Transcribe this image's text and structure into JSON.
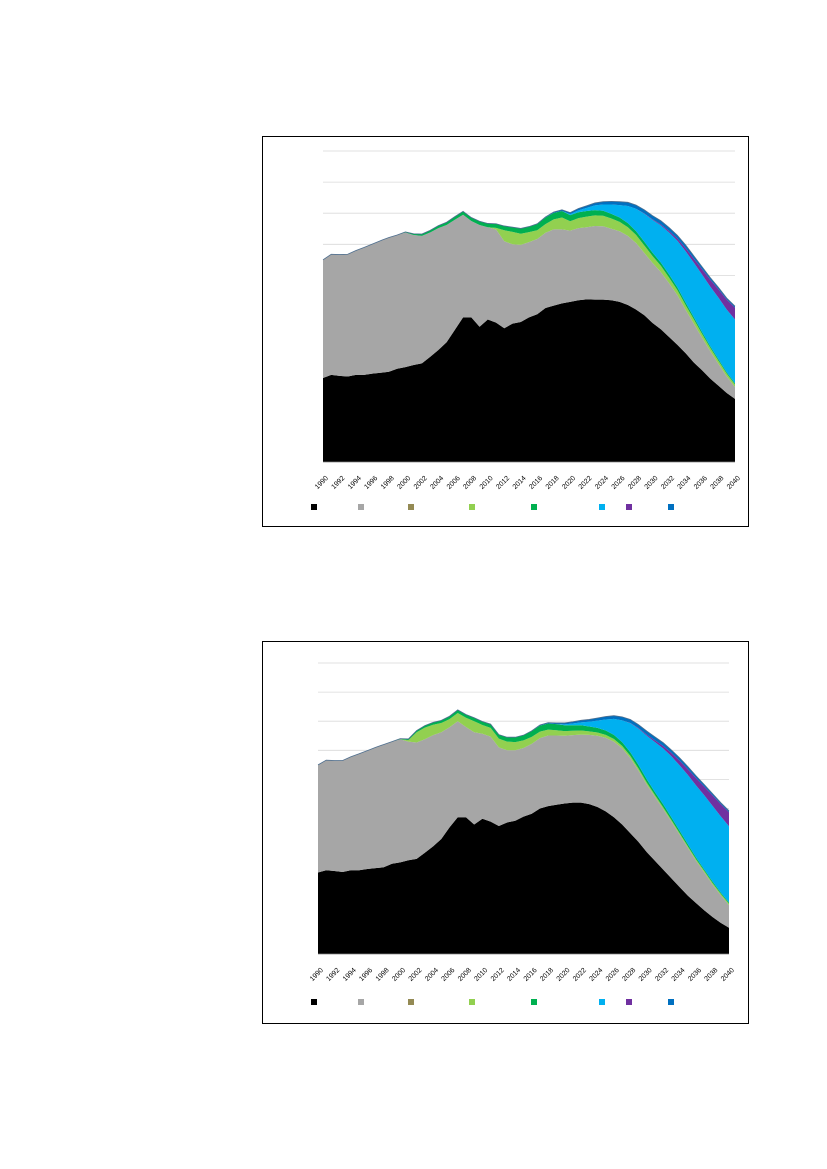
{
  "charts": [
    {
      "id": "top",
      "chart_data": {
        "type": "area",
        "title": "",
        "xlabel": "",
        "ylabel": "",
        "x_tick_labels": [
          "1990",
          "1992",
          "1994",
          "1996",
          "1998",
          "2000",
          "2002",
          "2004",
          "2006",
          "2008",
          "2010",
          "2012",
          "2014",
          "2016",
          "2018",
          "2020",
          "2022",
          "2024",
          "2026",
          "2028",
          "2030",
          "2032",
          "2034",
          "2036",
          "2038",
          "2040"
        ],
        "ylim": [
          0,
          10
        ],
        "grid": true,
        "legend_position": "bottom",
        "x": [
          1990,
          1991,
          1992,
          1993,
          1994,
          1995,
          1996,
          1997,
          1998,
          1999,
          2000,
          2001,
          2002,
          2003,
          2004,
          2005,
          2006,
          2007,
          2008,
          2009,
          2010,
          2011,
          2012,
          2013,
          2014,
          2015,
          2016,
          2017,
          2018,
          2019,
          2020,
          2021,
          2022,
          2023,
          2024,
          2025,
          2026,
          2027,
          2028,
          2029,
          2030,
          2031,
          2032,
          2033,
          2034,
          2035,
          2036,
          2037,
          2038,
          2039,
          2040
        ],
        "series": [
          {
            "color": "#000000",
            "values": [
              2.7,
              2.8,
              2.77,
              2.75,
              2.8,
              2.8,
              2.84,
              2.87,
              2.9,
              3.0,
              3.05,
              3.12,
              3.17,
              3.38,
              3.6,
              3.85,
              4.25,
              4.65,
              4.65,
              4.35,
              4.58,
              4.48,
              4.3,
              4.45,
              4.5,
              4.65,
              4.75,
              4.95,
              5.03,
              5.1,
              5.15,
              5.2,
              5.23,
              5.22,
              5.22,
              5.2,
              5.15,
              5.05,
              4.9,
              4.72,
              4.47,
              4.27,
              4.02,
              3.77,
              3.5,
              3.2,
              2.95,
              2.68,
              2.45,
              2.22,
              2.03
            ]
          },
          {
            "color": "#a6a6a6",
            "values": [
              3.8,
              3.88,
              3.9,
              3.93,
              4.0,
              4.1,
              4.17,
              4.25,
              4.32,
              4.3,
              4.33,
              4.18,
              4.1,
              4.0,
              3.92,
              3.77,
              3.54,
              3.3,
              3.1,
              3.27,
              2.97,
              3.0,
              2.8,
              2.55,
              2.48,
              2.42,
              2.42,
              2.42,
              2.45,
              2.38,
              2.29,
              2.32,
              2.32,
              2.37,
              2.36,
              2.3,
              2.27,
              2.22,
              2.14,
              2.0,
              1.93,
              1.84,
              1.73,
              1.6,
              1.4,
              1.25,
              1.05,
              0.88,
              0.7,
              0.53,
              0.38
            ]
          },
          {
            "color": "#948a54",
            "values": [
              0,
              0,
              0,
              0,
              0,
              0,
              0,
              0,
              0,
              0,
              0,
              0,
              0,
              0,
              0,
              0,
              0,
              0,
              0,
              0,
              0,
              0,
              0,
              0,
              0,
              0,
              0,
              0,
              0,
              0,
              0,
              0,
              0,
              0,
              0,
              0,
              0,
              0,
              0,
              0,
              0,
              0,
              0,
              0,
              0,
              0,
              0,
              0,
              0,
              0,
              0
            ]
          },
          {
            "color": "#92d050",
            "values": [
              0,
              0,
              0,
              0,
              0,
              0,
              0,
              0,
              0,
              0,
              0,
              0,
              0,
              0,
              0,
              0,
              0,
              0,
              0,
              0,
              0.0,
              0.05,
              0.35,
              0.4,
              0.36,
              0.32,
              0.28,
              0.28,
              0.32,
              0.38,
              0.3,
              0.32,
              0.34,
              0.34,
              0.34,
              0.33,
              0.3,
              0.28,
              0.26,
              0.24,
              0.22,
              0.2,
              0.18,
              0.16,
              0.15,
              0.14,
              0.12,
              0.11,
              0.1,
              0.09,
              0.08
            ]
          },
          {
            "color": "#00b050",
            "values": [
              0,
              0,
              0,
              0,
              0,
              0,
              0,
              0,
              0,
              0,
              0.02,
              0.04,
              0.06,
              0.07,
              0.08,
              0.09,
              0.1,
              0.11,
              0.11,
              0.12,
              0.12,
              0.13,
              0.14,
              0.15,
              0.17,
              0.18,
              0.2,
              0.21,
              0.21,
              0.21,
              0.2,
              0.19,
              0.18,
              0.17,
              0.16,
              0.15,
              0.14,
              0.13,
              0.12,
              0.12,
              0.11,
              0.1,
              0.1,
              0.09,
              0.08,
              0.07,
              0.06,
              0.05,
              0.05,
              0.04,
              0.04
            ]
          },
          {
            "color": "#00b0f0",
            "values": [
              0,
              0,
              0,
              0,
              0,
              0,
              0,
              0,
              0,
              0,
              0,
              0,
              0,
              0,
              0,
              0,
              0,
              0,
              0,
              0,
              0,
              0,
              0,
              0,
              0,
              0,
              0,
              0,
              0,
              0,
              0.03,
              0.06,
              0.1,
              0.15,
              0.2,
              0.3,
              0.4,
              0.55,
              0.72,
              0.9,
              1.05,
              1.2,
              1.35,
              1.5,
              1.65,
              1.75,
              1.85,
              1.92,
              1.98,
              2.02,
              2.05
            ]
          },
          {
            "color": "#7030a0",
            "values": [
              0,
              0,
              0,
              0,
              0,
              0,
              0,
              0,
              0,
              0,
              0,
              0,
              0,
              0,
              0,
              0,
              0,
              0,
              0,
              0,
              0,
              0,
              0,
              0,
              0,
              0,
              0,
              0,
              0,
              0,
              0,
              0,
              0,
              0,
              0,
              0,
              0,
              0,
              0,
              0.01,
              0.02,
              0.03,
              0.05,
              0.07,
              0.1,
              0.13,
              0.17,
              0.22,
              0.27,
              0.32,
              0.38
            ]
          },
          {
            "color": "#0070c0",
            "values": [
              0,
              0,
              0,
              0,
              0,
              0,
              0,
              0,
              0,
              0,
              0,
              0,
              0,
              0,
              0,
              0,
              0,
              0,
              0,
              0,
              0,
              0,
              0,
              0,
              0,
              0,
              0.01,
              0.02,
              0.03,
              0.04,
              0.05,
              0.06,
              0.07,
              0.08,
              0.09,
              0.1,
              0.11,
              0.12,
              0.12,
              0.12,
              0.12,
              0.12,
              0.11,
              0.1,
              0.1,
              0.09,
              0.08,
              0.07,
              0.06,
              0.05,
              0.05
            ]
          }
        ]
      }
    },
    {
      "id": "bottom",
      "chart_data": {
        "type": "area",
        "title": "",
        "xlabel": "",
        "ylabel": "",
        "x_tick_labels": [
          "1990",
          "1992",
          "1994",
          "1996",
          "1998",
          "2000",
          "2002",
          "2004",
          "2006",
          "2008",
          "2010",
          "2012",
          "2014",
          "2016",
          "2018",
          "2020",
          "2022",
          "2024",
          "2026",
          "2028",
          "2030",
          "2032",
          "2034",
          "2036",
          "2038",
          "2040"
        ],
        "ylim": [
          0,
          10
        ],
        "grid": true,
        "legend_position": "bottom",
        "x": [
          1990,
          1991,
          1992,
          1993,
          1994,
          1995,
          1996,
          1997,
          1998,
          1999,
          2000,
          2001,
          2002,
          2003,
          2004,
          2005,
          2006,
          2007,
          2008,
          2009,
          2010,
          2011,
          2012,
          2013,
          2014,
          2015,
          2016,
          2017,
          2018,
          2019,
          2020,
          2021,
          2022,
          2023,
          2024,
          2025,
          2026,
          2027,
          2028,
          2029,
          2030,
          2031,
          2032,
          2033,
          2034,
          2035,
          2036,
          2037,
          2038,
          2039,
          2040
        ],
        "series": [
          {
            "color": "#000000",
            "values": [
              2.8,
              2.88,
              2.85,
              2.82,
              2.88,
              2.88,
              2.92,
              2.95,
              2.98,
              3.1,
              3.15,
              3.22,
              3.27,
              3.48,
              3.7,
              3.95,
              4.35,
              4.7,
              4.7,
              4.45,
              4.65,
              4.55,
              4.4,
              4.52,
              4.58,
              4.72,
              4.82,
              5.0,
              5.08,
              5.13,
              5.17,
              5.2,
              5.2,
              5.15,
              5.05,
              4.9,
              4.7,
              4.45,
              4.15,
              3.85,
              3.5,
              3.2,
              2.9,
              2.6,
              2.3,
              2.0,
              1.75,
              1.5,
              1.27,
              1.07,
              0.9
            ]
          },
          {
            "color": "#a6a6a6",
            "values": [
              3.7,
              3.78,
              3.8,
              3.83,
              3.9,
              4.0,
              4.07,
              4.15,
              4.22,
              4.2,
              4.23,
              4.08,
              4.0,
              3.9,
              3.82,
              3.67,
              3.44,
              3.3,
              3.1,
              3.17,
              2.92,
              2.92,
              2.7,
              2.48,
              2.42,
              2.36,
              2.4,
              2.42,
              2.43,
              2.38,
              2.33,
              2.32,
              2.34,
              2.38,
              2.45,
              2.53,
              2.6,
              2.62,
              2.58,
              2.45,
              2.32,
              2.2,
              2.08,
              1.95,
              1.8,
              1.65,
              1.45,
              1.3,
              1.12,
              0.95,
              0.78
            ]
          },
          {
            "color": "#948a54",
            "values": [
              0,
              0,
              0,
              0,
              0,
              0,
              0,
              0,
              0,
              0,
              0,
              0,
              0,
              0,
              0,
              0,
              0,
              0,
              0,
              0,
              0,
              0,
              0,
              0,
              0,
              0,
              0,
              0,
              0,
              0,
              0,
              0,
              0,
              0,
              0,
              0,
              0,
              0,
              0,
              0,
              0,
              0,
              0,
              0,
              0,
              0,
              0,
              0,
              0,
              0,
              0
            ]
          },
          {
            "color": "#92d050",
            "values": [
              0,
              0,
              0,
              0,
              0,
              0,
              0,
              0,
              0,
              0,
              0.0,
              0.05,
              0.35,
              0.4,
              0.36,
              0.32,
              0.28,
              0.28,
              0.32,
              0.38,
              0.3,
              0.3,
              0.3,
              0.3,
              0.28,
              0.26,
              0.24,
              0.22,
              0.2,
              0.18,
              0.16,
              0.15,
              0.14,
              0.12,
              0.11,
              0.1,
              0.09,
              0.08,
              0.08,
              0.07,
              0.07,
              0.06,
              0.06,
              0.05,
              0.05,
              0.05,
              0.05,
              0.05,
              0.05,
              0.05,
              0.05
            ]
          },
          {
            "color": "#00b050",
            "values": [
              0,
              0,
              0,
              0,
              0,
              0,
              0,
              0,
              0,
              0,
              0.02,
              0.04,
              0.06,
              0.07,
              0.08,
              0.09,
              0.1,
              0.11,
              0.11,
              0.12,
              0.12,
              0.13,
              0.14,
              0.15,
              0.17,
              0.18,
              0.2,
              0.21,
              0.21,
              0.21,
              0.2,
              0.19,
              0.18,
              0.17,
              0.16,
              0.15,
              0.14,
              0.13,
              0.12,
              0.12,
              0.11,
              0.1,
              0.1,
              0.09,
              0.08,
              0.07,
              0.06,
              0.05,
              0.05,
              0.04,
              0.04
            ]
          },
          {
            "color": "#00b0f0",
            "values": [
              0,
              0,
              0,
              0,
              0,
              0,
              0,
              0,
              0,
              0,
              0,
              0,
              0,
              0,
              0,
              0,
              0,
              0,
              0,
              0,
              0,
              0,
              0,
              0,
              0,
              0,
              0,
              0,
              0,
              0,
              0.03,
              0.06,
              0.1,
              0.16,
              0.25,
              0.38,
              0.55,
              0.75,
              1.0,
              1.25,
              1.5,
              1.72,
              1.92,
              2.1,
              2.25,
              2.38,
              2.48,
              2.55,
              2.6,
              2.62,
              2.62
            ]
          },
          {
            "color": "#7030a0",
            "values": [
              0,
              0,
              0,
              0,
              0,
              0,
              0,
              0,
              0,
              0,
              0,
              0,
              0,
              0,
              0,
              0,
              0,
              0,
              0,
              0,
              0,
              0,
              0,
              0,
              0,
              0,
              0,
              0,
              0,
              0,
              0,
              0,
              0,
              0,
              0,
              0,
              0,
              0,
              0.01,
              0.02,
              0.04,
              0.06,
              0.09,
              0.12,
              0.16,
              0.2,
              0.25,
              0.3,
              0.36,
              0.42,
              0.48
            ]
          },
          {
            "color": "#0070c0",
            "values": [
              0,
              0,
              0,
              0,
              0,
              0,
              0,
              0,
              0,
              0,
              0,
              0,
              0,
              0,
              0,
              0,
              0,
              0,
              0,
              0,
              0,
              0,
              0,
              0,
              0,
              0,
              0.01,
              0.02,
              0.03,
              0.04,
              0.05,
              0.06,
              0.07,
              0.08,
              0.09,
              0.1,
              0.11,
              0.12,
              0.12,
              0.12,
              0.12,
              0.12,
              0.11,
              0.1,
              0.1,
              0.09,
              0.08,
              0.07,
              0.06,
              0.05,
              0.05
            ]
          }
        ]
      }
    }
  ]
}
